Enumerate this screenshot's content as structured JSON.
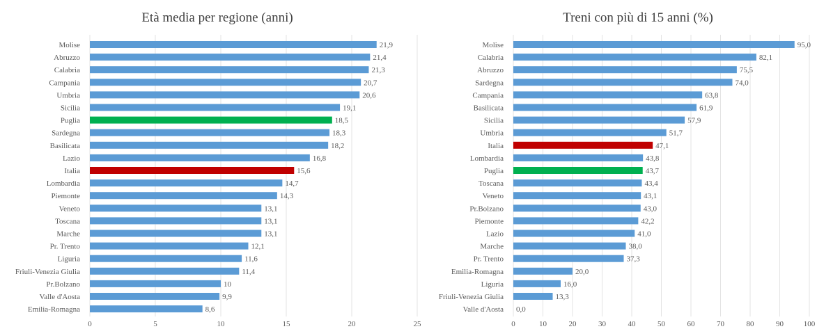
{
  "chart_data": [
    {
      "type": "bar",
      "orientation": "horizontal",
      "title": "Età media per regione (anni)",
      "xlim": [
        0,
        25
      ],
      "xticks": [
        "0",
        "5",
        "10",
        "15",
        "20",
        "25"
      ],
      "grid": true,
      "colors": {
        "default": "#5b9bd5",
        "highlight_green": "#00b050",
        "highlight_red": "#c00000"
      },
      "bars": [
        {
          "category": "Molise",
          "value": 21.9,
          "label": "21,9",
          "color": "default"
        },
        {
          "category": "Abruzzo",
          "value": 21.4,
          "label": "21,4",
          "color": "default"
        },
        {
          "category": "Calabria",
          "value": 21.3,
          "label": "21,3",
          "color": "default"
        },
        {
          "category": "Campania",
          "value": 20.7,
          "label": "20,7",
          "color": "default"
        },
        {
          "category": "Umbria",
          "value": 20.6,
          "label": "20,6",
          "color": "default"
        },
        {
          "category": "Sicilia",
          "value": 19.1,
          "label": "19,1",
          "color": "default"
        },
        {
          "category": "Puglia",
          "value": 18.5,
          "label": "18,5",
          "color": "highlight_green"
        },
        {
          "category": "Sardegna",
          "value": 18.3,
          "label": "18,3",
          "color": "default"
        },
        {
          "category": "Basilicata",
          "value": 18.2,
          "label": "18,2",
          "color": "default"
        },
        {
          "category": "Lazio",
          "value": 16.8,
          "label": "16,8",
          "color": "default"
        },
        {
          "category": "Italia",
          "value": 15.6,
          "label": "15,6",
          "color": "highlight_red"
        },
        {
          "category": "Lombardia",
          "value": 14.7,
          "label": "14,7",
          "color": "default"
        },
        {
          "category": "Piemonte",
          "value": 14.3,
          "label": "14,3",
          "color": "default"
        },
        {
          "category": "Veneto",
          "value": 13.1,
          "label": "13,1",
          "color": "default"
        },
        {
          "category": "Toscana",
          "value": 13.1,
          "label": "13,1",
          "color": "default"
        },
        {
          "category": "Marche",
          "value": 13.1,
          "label": "13,1",
          "color": "default"
        },
        {
          "category": "Pr. Trento",
          "value": 12.1,
          "label": "12,1",
          "color": "default"
        },
        {
          "category": "Liguria",
          "value": 11.6,
          "label": "11,6",
          "color": "default"
        },
        {
          "category": "Friuli-Venezia Giulia",
          "value": 11.4,
          "label": "11,4",
          "color": "default"
        },
        {
          "category": "Pr.Bolzano",
          "value": 10,
          "label": "10",
          "color": "default"
        },
        {
          "category": "Valle d'Aosta",
          "value": 9.9,
          "label": "9,9",
          "color": "default"
        },
        {
          "category": "Emilia-Romagna",
          "value": 8.6,
          "label": "8,6",
          "color": "default"
        }
      ]
    },
    {
      "type": "bar",
      "orientation": "horizontal",
      "title": "Treni con più di 15 anni (%)",
      "xlim": [
        0,
        100
      ],
      "xticks": [
        "0",
        "10",
        "20",
        "30",
        "40",
        "50",
        "60",
        "70",
        "80",
        "90",
        "100"
      ],
      "grid": true,
      "colors": {
        "default": "#5b9bd5",
        "highlight_green": "#00b050",
        "highlight_red": "#c00000"
      },
      "bars": [
        {
          "category": "Molise",
          "value": 95.0,
          "label": "95,0",
          "color": "default"
        },
        {
          "category": "Calabria",
          "value": 82.1,
          "label": "82,1",
          "color": "default"
        },
        {
          "category": "Abruzzo",
          "value": 75.5,
          "label": "75,5",
          "color": "default"
        },
        {
          "category": "Sardegna",
          "value": 74.0,
          "label": "74,0",
          "color": "default"
        },
        {
          "category": "Campania",
          "value": 63.8,
          "label": "63,8",
          "color": "default"
        },
        {
          "category": "Basilicata",
          "value": 61.9,
          "label": "61,9",
          "color": "default"
        },
        {
          "category": "Sicilia",
          "value": 57.9,
          "label": "57,9",
          "color": "default"
        },
        {
          "category": "Umbria",
          "value": 51.7,
          "label": "51,7",
          "color": "default"
        },
        {
          "category": "Italia",
          "value": 47.1,
          "label": "47,1",
          "color": "highlight_red"
        },
        {
          "category": "Lombardia",
          "value": 43.8,
          "label": "43,8",
          "color": "default"
        },
        {
          "category": "Puglia",
          "value": 43.7,
          "label": "43,7",
          "color": "highlight_green"
        },
        {
          "category": "Toscana",
          "value": 43.4,
          "label": "43,4",
          "color": "default"
        },
        {
          "category": "Veneto",
          "value": 43.1,
          "label": "43,1",
          "color": "default"
        },
        {
          "category": "Pr.Bolzano",
          "value": 43.0,
          "label": "43,0",
          "color": "default"
        },
        {
          "category": "Piemonte",
          "value": 42.2,
          "label": "42,2",
          "color": "default"
        },
        {
          "category": "Lazio",
          "value": 41.0,
          "label": "41,0",
          "color": "default"
        },
        {
          "category": "Marche",
          "value": 38.0,
          "label": "38,0",
          "color": "default"
        },
        {
          "category": "Pr. Trento",
          "value": 37.3,
          "label": "37,3",
          "color": "default"
        },
        {
          "category": "Emilia-Romagna",
          "value": 20.0,
          "label": "20,0",
          "color": "default"
        },
        {
          "category": "Liguria",
          "value": 16.0,
          "label": "16,0",
          "color": "default"
        },
        {
          "category": "Friuli-Venezia Giulia",
          "value": 13.3,
          "label": "13,3",
          "color": "default"
        },
        {
          "category": "Valle d'Aosta",
          "value": 0.0,
          "label": "0,0",
          "color": "default"
        }
      ]
    }
  ]
}
